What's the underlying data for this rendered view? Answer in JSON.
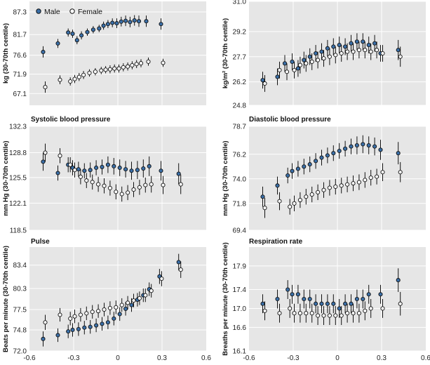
{
  "legend": {
    "male": "Male",
    "female": "Female"
  },
  "colors": {
    "male": "#3a6fa8",
    "female": "#ffffff",
    "panel_bg": "#e6e6e6",
    "grid": "#ffffff",
    "errorbar": "#111111"
  },
  "chart_data": [
    {
      "type": "scatter",
      "title": "",
      "ylabel": "kg (30-70th centile)",
      "xlim": [
        -0.6,
        0.6
      ],
      "ylim": [
        64.2,
        89.9
      ],
      "yticks": [
        "87.3",
        "81.7",
        "76.6",
        "71.9",
        "67.1"
      ],
      "xticks": [],
      "series": [
        {
          "name": "Male",
          "x": [
            -0.5,
            -0.4,
            -0.33,
            -0.3,
            -0.27,
            -0.24,
            -0.2,
            -0.16,
            -0.12,
            -0.09,
            -0.06,
            -0.03,
            0.0,
            0.03,
            0.06,
            0.09,
            0.12,
            0.15,
            0.2,
            0.3
          ],
          "y": [
            77.4,
            79.5,
            82.2,
            81.9,
            80.3,
            81.5,
            82.3,
            82.9,
            83.2,
            83.9,
            84.3,
            84.6,
            84.5,
            84.9,
            85.1,
            84.8,
            85.2,
            85.0,
            85.0,
            84.3
          ],
          "err": [
            1.4,
            1.1,
            1.0,
            1.0,
            1.0,
            1.0,
            0.9,
            0.9,
            0.9,
            1.0,
            1.0,
            1.1,
            1.2,
            1.2,
            1.3,
            1.3,
            1.3,
            1.4,
            1.4,
            1.4
          ]
        },
        {
          "name": "Female",
          "x": [
            -0.5,
            -0.4,
            -0.33,
            -0.3,
            -0.27,
            -0.24,
            -0.2,
            -0.16,
            -0.12,
            -0.09,
            -0.06,
            -0.03,
            0.0,
            0.03,
            0.06,
            0.09,
            0.12,
            0.15,
            0.2,
            0.3
          ],
          "y": [
            68.7,
            70.5,
            70.1,
            70.7,
            71.2,
            71.7,
            72.2,
            72.5,
            72.8,
            73.0,
            73.1,
            73.3,
            73.3,
            73.6,
            73.8,
            74.1,
            74.4,
            74.6,
            75.0,
            74.7
          ],
          "err": [
            1.4,
            1.1,
            1.0,
            1.0,
            1.0,
            1.0,
            0.9,
            0.9,
            0.9,
            0.9,
            1.0,
            1.0,
            1.0,
            1.0,
            1.0,
            1.0,
            1.0,
            1.0,
            1.0,
            1.0
          ]
        }
      ]
    },
    {
      "type": "scatter",
      "title": "",
      "ylabel": "kg/m² (30-70th centile)",
      "xlim": [
        -0.6,
        0.6
      ],
      "ylim": [
        24.8,
        31.0
      ],
      "yticks": [
        "31.0",
        "29.2",
        "27.7",
        "26.2",
        "24.8"
      ],
      "xticks": [],
      "series": [
        {
          "name": "Male",
          "x": [
            -0.5,
            -0.4,
            -0.35,
            -0.3,
            -0.26,
            -0.22,
            -0.18,
            -0.14,
            -0.1,
            -0.06,
            -0.02,
            0.02,
            0.06,
            0.1,
            0.14,
            0.18,
            0.22,
            0.26,
            0.3,
            0.42
          ],
          "y": [
            26.3,
            26.5,
            27.3,
            27.4,
            27.0,
            27.5,
            27.7,
            27.9,
            28.0,
            28.2,
            28.3,
            28.4,
            28.3,
            28.5,
            28.6,
            28.6,
            28.4,
            28.5,
            27.9,
            28.1
          ],
          "err": [
            0.5,
            0.5,
            0.5,
            0.5,
            0.5,
            0.5,
            0.5,
            0.5,
            0.5,
            0.5,
            0.5,
            0.5,
            0.5,
            0.5,
            0.5,
            0.5,
            0.5,
            0.5,
            0.5,
            0.6
          ]
        },
        {
          "name": "Female",
          "x": [
            -0.5,
            -0.4,
            -0.35,
            -0.3,
            -0.26,
            -0.22,
            -0.18,
            -0.14,
            -0.1,
            -0.06,
            -0.02,
            0.02,
            0.06,
            0.1,
            0.14,
            0.18,
            0.22,
            0.26,
            0.3,
            0.42
          ],
          "y": [
            26.1,
            26.9,
            26.8,
            26.9,
            27.2,
            27.3,
            27.4,
            27.5,
            27.6,
            27.7,
            27.8,
            27.9,
            28.0,
            28.0,
            28.1,
            28.1,
            28.0,
            28.1,
            27.9,
            27.7
          ],
          "err": [
            0.5,
            0.5,
            0.5,
            0.5,
            0.5,
            0.5,
            0.5,
            0.5,
            0.5,
            0.5,
            0.5,
            0.5,
            0.5,
            0.5,
            0.5,
            0.5,
            0.5,
            0.5,
            0.5,
            0.6
          ]
        }
      ]
    },
    {
      "type": "scatter",
      "title": "Systolic blood pressure",
      "ylabel": "mm Hg (30-70th centile)",
      "xlim": [
        -0.6,
        0.6
      ],
      "ylim": [
        118.5,
        132.3
      ],
      "yticks": [
        "132.3",
        "128.8",
        "125.5",
        "122.1",
        "118.5"
      ],
      "xticks": [],
      "series": [
        {
          "name": "Male",
          "x": [
            -0.5,
            -0.4,
            -0.33,
            -0.3,
            -0.26,
            -0.22,
            -0.18,
            -0.14,
            -0.1,
            -0.06,
            -0.02,
            0.02,
            0.06,
            0.1,
            0.14,
            0.18,
            0.22,
            0.3,
            0.42
          ],
          "y": [
            127.6,
            126.1,
            127.2,
            126.8,
            126.6,
            126.4,
            126.5,
            126.8,
            126.9,
            127.2,
            127.0,
            126.8,
            126.6,
            126.4,
            126.5,
            126.7,
            127.0,
            126.4,
            126.0
          ],
          "err": [
            1.2,
            1.0,
            1.0,
            1.0,
            1.0,
            1.0,
            1.0,
            1.0,
            1.0,
            1.1,
            1.1,
            1.1,
            1.1,
            1.2,
            1.2,
            1.2,
            1.3,
            1.3,
            1.4
          ]
        },
        {
          "name": "Female",
          "x": [
            -0.5,
            -0.4,
            -0.33,
            -0.3,
            -0.26,
            -0.22,
            -0.18,
            -0.14,
            -0.1,
            -0.06,
            -0.02,
            0.02,
            0.06,
            0.1,
            0.14,
            0.18,
            0.22,
            0.3,
            0.42
          ],
          "y": [
            128.8,
            128.4,
            127.2,
            126.5,
            125.6,
            125.1,
            124.9,
            124.6,
            124.4,
            124.1,
            123.6,
            123.3,
            123.5,
            123.9,
            124.2,
            124.5,
            124.6,
            124.5,
            124.6
          ],
          "err": [
            1.2,
            1.0,
            1.0,
            1.0,
            1.0,
            1.0,
            1.0,
            1.0,
            1.0,
            1.0,
            1.0,
            1.0,
            1.0,
            1.0,
            1.0,
            1.0,
            1.1,
            1.2,
            1.3
          ]
        }
      ]
    },
    {
      "type": "scatter",
      "title": "Diastolic blood pressure",
      "ylabel": "mm Hg (30-70th centile)",
      "xlim": [
        -0.6,
        0.6
      ],
      "ylim": [
        69.4,
        78.7
      ],
      "yticks": [
        "78.7",
        "76.2",
        "74.0",
        "71.8",
        "69.4"
      ],
      "xticks": [],
      "series": [
        {
          "name": "Male",
          "x": [
            -0.5,
            -0.4,
            -0.33,
            -0.3,
            -0.26,
            -0.22,
            -0.18,
            -0.14,
            -0.1,
            -0.06,
            -0.02,
            0.02,
            0.06,
            0.1,
            0.14,
            0.18,
            0.22,
            0.26,
            0.3,
            0.42
          ],
          "y": [
            72.4,
            73.4,
            74.3,
            74.7,
            74.9,
            75.1,
            75.3,
            75.6,
            75.9,
            76.1,
            76.3,
            76.5,
            76.7,
            76.9,
            77.0,
            77.1,
            77.0,
            76.9,
            76.6,
            76.3
          ],
          "err": [
            0.9,
            0.8,
            0.7,
            0.7,
            0.7,
            0.7,
            0.7,
            0.7,
            0.7,
            0.7,
            0.7,
            0.7,
            0.7,
            0.7,
            0.8,
            0.8,
            0.8,
            0.8,
            0.9,
            1.0
          ]
        },
        {
          "name": "Female",
          "x": [
            -0.5,
            -0.4,
            -0.33,
            -0.3,
            -0.26,
            -0.22,
            -0.18,
            -0.14,
            -0.1,
            -0.06,
            -0.02,
            0.02,
            0.06,
            0.1,
            0.14,
            0.18,
            0.22,
            0.26,
            0.3,
            0.42
          ],
          "y": [
            71.4,
            72.0,
            71.5,
            71.8,
            72.1,
            72.4,
            72.6,
            72.8,
            73.0,
            73.2,
            73.3,
            73.4,
            73.5,
            73.6,
            73.7,
            73.9,
            74.1,
            74.2,
            74.6,
            74.6
          ],
          "err": [
            0.9,
            0.8,
            0.7,
            0.7,
            0.7,
            0.7,
            0.7,
            0.7,
            0.7,
            0.7,
            0.7,
            0.7,
            0.7,
            0.7,
            0.7,
            0.7,
            0.7,
            0.7,
            0.8,
            0.9
          ]
        }
      ]
    },
    {
      "type": "scatter",
      "title": "Pulse",
      "ylabel": "Beats per minute (30-70th centile)",
      "xlim": [
        -0.6,
        0.6
      ],
      "ylim": [
        72.0,
        85.8
      ],
      "yticks": [
        "83.4",
        "80.3",
        "77.5",
        "74.8",
        "72.0"
      ],
      "xticks": [
        "-0.6",
        "-0.3",
        "0",
        "0.3",
        "0.6"
      ],
      "series": [
        {
          "name": "Male",
          "x": [
            -0.5,
            -0.4,
            -0.33,
            -0.3,
            -0.26,
            -0.22,
            -0.18,
            -0.14,
            -0.1,
            -0.06,
            -0.02,
            0.02,
            0.06,
            0.1,
            0.14,
            0.18,
            0.22,
            0.29,
            0.42
          ],
          "y": [
            73.6,
            74.1,
            74.6,
            74.8,
            74.9,
            75.1,
            75.2,
            75.4,
            75.6,
            75.8,
            76.3,
            76.9,
            77.6,
            78.1,
            78.8,
            79.4,
            80.2,
            81.9,
            83.8
          ],
          "err": [
            1.0,
            0.9,
            0.9,
            0.9,
            0.9,
            0.9,
            0.9,
            0.9,
            0.9,
            0.9,
            0.9,
            0.9,
            0.9,
            0.9,
            0.9,
            0.9,
            0.9,
            1.0,
            1.1
          ]
        },
        {
          "name": "Female",
          "x": [
            -0.5,
            -0.4,
            -0.33,
            -0.3,
            -0.26,
            -0.22,
            -0.18,
            -0.14,
            -0.1,
            -0.06,
            -0.02,
            0.02,
            0.06,
            0.1,
            0.14,
            0.18,
            0.22,
            0.29,
            0.42
          ],
          "y": [
            75.8,
            76.8,
            76.3,
            76.6,
            76.8,
            77.0,
            77.2,
            77.3,
            77.5,
            77.7,
            77.8,
            78.1,
            78.4,
            78.7,
            79.0,
            79.4,
            80.0,
            81.6,
            82.8
          ],
          "err": [
            1.0,
            0.9,
            0.9,
            0.9,
            0.9,
            0.9,
            0.9,
            0.9,
            0.9,
            0.9,
            0.9,
            0.9,
            0.9,
            0.9,
            0.9,
            0.9,
            0.9,
            1.0,
            1.1
          ]
        }
      ]
    },
    {
      "type": "scatter",
      "title": "Respiration rate",
      "ylabel": "Breaths per minute (30-70th centile)",
      "xlim": [
        -0.6,
        0.6
      ],
      "ylim": [
        16.1,
        18.3
      ],
      "yticks": [
        "17.9",
        "17.4",
        "17.0",
        "16.6",
        "16.1"
      ],
      "xticks": [
        "-0.6",
        "-0.3",
        "0",
        "0.3",
        "0.6"
      ],
      "series": [
        {
          "name": "Male",
          "x": [
            -0.5,
            -0.4,
            -0.33,
            -0.3,
            -0.26,
            -0.22,
            -0.18,
            -0.14,
            -0.1,
            -0.06,
            -0.02,
            0.02,
            0.06,
            0.1,
            0.14,
            0.18,
            0.22,
            0.3,
            0.42
          ],
          "y": [
            17.1,
            17.2,
            17.4,
            17.3,
            17.3,
            17.2,
            17.2,
            17.1,
            17.1,
            17.1,
            17.1,
            17.0,
            17.1,
            17.1,
            17.2,
            17.2,
            17.3,
            17.3,
            17.6
          ],
          "err": [
            0.2,
            0.2,
            0.2,
            0.2,
            0.2,
            0.2,
            0.2,
            0.2,
            0.2,
            0.2,
            0.2,
            0.2,
            0.2,
            0.2,
            0.2,
            0.2,
            0.2,
            0.2,
            0.25
          ]
        },
        {
          "name": "Female",
          "x": [
            -0.5,
            -0.4,
            -0.33,
            -0.3,
            -0.26,
            -0.22,
            -0.18,
            -0.14,
            -0.1,
            -0.06,
            -0.02,
            0.02,
            0.06,
            0.1,
            0.14,
            0.18,
            0.22,
            0.3,
            0.42
          ],
          "y": [
            16.95,
            16.9,
            17.0,
            16.9,
            16.9,
            16.9,
            16.9,
            16.85,
            16.85,
            16.85,
            16.85,
            16.85,
            16.9,
            16.9,
            16.9,
            16.95,
            17.0,
            17.0,
            17.1
          ],
          "err": [
            0.2,
            0.2,
            0.2,
            0.2,
            0.2,
            0.2,
            0.2,
            0.2,
            0.2,
            0.2,
            0.2,
            0.2,
            0.2,
            0.2,
            0.2,
            0.2,
            0.2,
            0.2,
            0.25
          ]
        }
      ]
    }
  ]
}
